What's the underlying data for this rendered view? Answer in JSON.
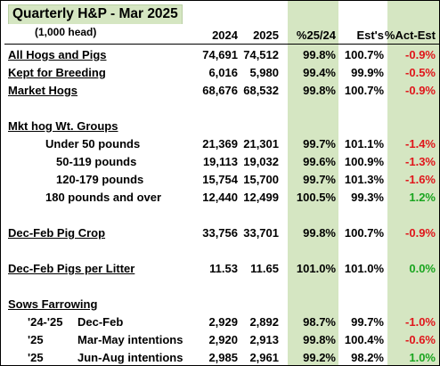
{
  "title": "Quarterly H&P - Mar 2025",
  "units": "(1,000 head)",
  "columns": [
    "2024",
    "2025",
    "%25/24",
    "Est's",
    "%Act-Est"
  ],
  "rows": [
    {
      "label": "All Hogs and Pigs",
      "v2024": "74,691",
      "v2025": "74,512",
      "pct": "99.8%",
      "est": "100.7%",
      "act": "-0.9%",
      "act_sign": "neg"
    },
    {
      "label": "Kept for Breeding",
      "v2024": "6,016",
      "v2025": "5,980",
      "pct": "99.4%",
      "est": "99.9%",
      "act": "-0.5%",
      "act_sign": "neg"
    },
    {
      "label": "Market Hogs",
      "v2024": "68,676",
      "v2025": "68,532",
      "pct": "99.8%",
      "est": "100.7%",
      "act": "-0.9%",
      "act_sign": "neg"
    },
    {
      "label": "Mkt hog Wt. Groups"
    },
    {
      "label": "Under 50 pounds",
      "v2024": "21,369",
      "v2025": "21,301",
      "pct": "99.7%",
      "est": "101.1%",
      "act": "-1.4%",
      "act_sign": "neg"
    },
    {
      "label": "50-119 pounds",
      "v2024": "19,113",
      "v2025": "19,032",
      "pct": "99.6%",
      "est": "100.9%",
      "act": "-1.3%",
      "act_sign": "neg"
    },
    {
      "label": "120-179 pounds",
      "v2024": "15,754",
      "v2025": "15,700",
      "pct": "99.7%",
      "est": "101.3%",
      "act": "-1.6%",
      "act_sign": "neg"
    },
    {
      "label": "180 pounds and over",
      "v2024": "12,440",
      "v2025": "12,499",
      "pct": "100.5%",
      "est": "99.3%",
      "act": "1.2%",
      "act_sign": "pos"
    },
    {
      "label": "Dec-Feb Pig Crop",
      "v2024": "33,756",
      "v2025": "33,701",
      "pct": "99.8%",
      "est": "100.7%",
      "act": "-0.9%",
      "act_sign": "neg"
    },
    {
      "label": "Dec-Feb Pigs per Litter",
      "v2024": "11.53",
      "v2025": "11.65",
      "pct": "101.0%",
      "est": "101.0%",
      "act": "0.0%",
      "act_sign": "pos"
    },
    {
      "label": "Sows Farrowing"
    },
    {
      "prefix": "'24-'25",
      "label": "Dec-Feb",
      "v2024": "2,929",
      "v2025": "2,892",
      "pct": "98.7%",
      "est": "99.7%",
      "act": "-1.0%",
      "act_sign": "neg"
    },
    {
      "prefix": "'25",
      "label": "Mar-May intentions",
      "v2024": "2,920",
      "v2025": "2,913",
      "pct": "99.8%",
      "est": "100.4%",
      "act": "-0.6%",
      "act_sign": "neg"
    },
    {
      "prefix": "'25",
      "label": "Jun-Aug intentions",
      "v2024": "2,985",
      "v2025": "2,961",
      "pct": "99.2%",
      "est": "98.2%",
      "act": "1.0%",
      "act_sign": "pos"
    }
  ],
  "colors": {
    "negative": "#e0161b",
    "positive": "#1aa51f",
    "highlight": "#d5e6c2"
  }
}
